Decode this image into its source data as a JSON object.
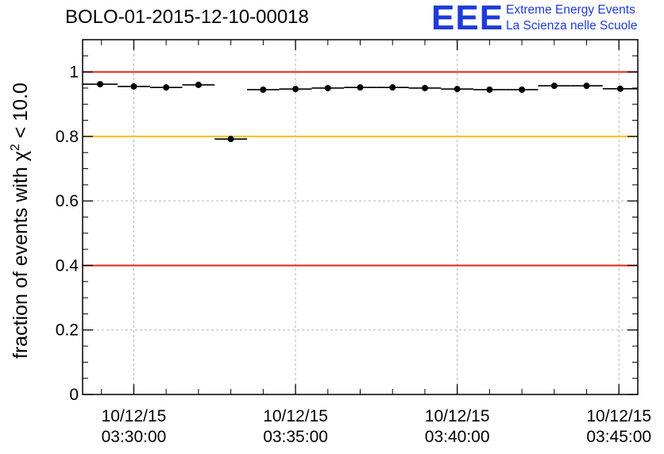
{
  "title": "BOLO-01-2015-12-10-00018",
  "logo": {
    "mark": "EEE",
    "line1": "Extreme Energy Events",
    "line2": "La Scienza nelle Scuole",
    "color": "#1f3bd8"
  },
  "chart_data": {
    "type": "scatter",
    "title": "BOLO-01-2015-12-10-00018",
    "ylabel_main": "fraction of events with χ",
    "ylabel_sup": "2",
    "ylabel_tail": " < 10.0",
    "xlabel": "",
    "ylim": [
      0,
      1.1
    ],
    "xlim": [
      "03:28:25",
      "03:45:35"
    ],
    "yticks": [
      {
        "v": 0,
        "label": "0"
      },
      {
        "v": 0.2,
        "label": "0.2"
      },
      {
        "v": 0.4,
        "label": "0.4"
      },
      {
        "v": 0.6,
        "label": "0.6"
      },
      {
        "v": 0.8,
        "label": "0.8"
      },
      {
        "v": 1.0,
        "label": "1"
      }
    ],
    "xticks": [
      {
        "t": "03:30:00",
        "date": "10/12/15",
        "time": "03:30:00"
      },
      {
        "t": "03:35:00",
        "date": "10/12/15",
        "time": "03:35:00"
      },
      {
        "t": "03:40:00",
        "date": "10/12/15",
        "time": "03:40:00"
      },
      {
        "t": "03:45:00",
        "date": "10/12/15",
        "time": "03:45:00"
      }
    ],
    "grid": true,
    "reference_lines": [
      {
        "y": 1.0,
        "color": "#e8201a"
      },
      {
        "y": 0.8,
        "color": "#f5c200"
      },
      {
        "y": 0.4,
        "color": "#e8201a"
      }
    ],
    "points": [
      {
        "x": "03:28:25",
        "x_end": "03:29:30",
        "y": 0.962
      },
      {
        "x": "03:29:30",
        "x_end": "03:30:30",
        "y": 0.955
      },
      {
        "x": "03:30:30",
        "x_end": "03:31:30",
        "y": 0.952
      },
      {
        "x": "03:31:30",
        "x_end": "03:32:30",
        "y": 0.96
      },
      {
        "x": "03:32:30",
        "x_end": "03:33:30",
        "y": 0.792
      },
      {
        "x": "03:33:30",
        "x_end": "03:34:30",
        "y": 0.945
      },
      {
        "x": "03:34:30",
        "x_end": "03:35:30",
        "y": 0.947
      },
      {
        "x": "03:35:30",
        "x_end": "03:36:30",
        "y": 0.95
      },
      {
        "x": "03:36:30",
        "x_end": "03:37:30",
        "y": 0.952
      },
      {
        "x": "03:37:30",
        "x_end": "03:38:30",
        "y": 0.952
      },
      {
        "x": "03:38:30",
        "x_end": "03:39:30",
        "y": 0.95
      },
      {
        "x": "03:39:30",
        "x_end": "03:40:30",
        "y": 0.947
      },
      {
        "x": "03:40:30",
        "x_end": "03:41:30",
        "y": 0.945
      },
      {
        "x": "03:41:30",
        "x_end": "03:42:30",
        "y": 0.945
      },
      {
        "x": "03:42:30",
        "x_end": "03:43:30",
        "y": 0.957
      },
      {
        "x": "03:43:30",
        "x_end": "03:44:30",
        "y": 0.957
      },
      {
        "x": "03:44:30",
        "x_end": "03:45:35",
        "y": 0.948
      }
    ]
  }
}
